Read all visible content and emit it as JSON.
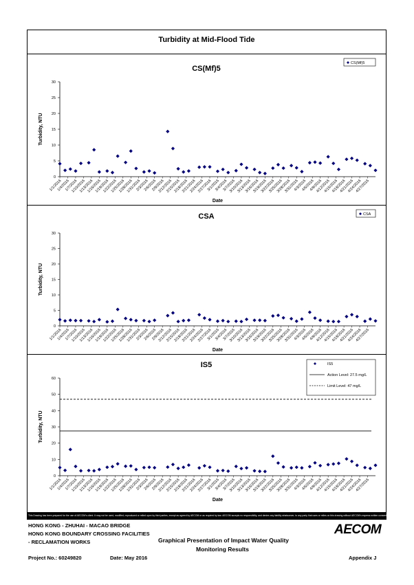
{
  "page": {
    "title": "Turbidity at Mid-Flood Tide",
    "disclaimer": "This Drawing has been prepared for the use of AECOM's client. It may not be used, modified, reproduced or relied upon by third parties, except as agreed by AECOM or as required by law. AECOM accepts no responsibility, and denies any liability whatsoever, to any party that uses or relies on this drawing without AECOM's express written consent."
  },
  "footer": {
    "line1": "HONG KONG - ZHUHAI - MACAO BRIDGE",
    "line2": "HONG KONG BOUNDARY CROSSING FACILITIES",
    "line3": "- RECLAMATION WORKS",
    "presentation_title_1": "Graphical Presentation of Impact Water Quality",
    "presentation_title_2": "Monitoring Results",
    "project_no": "Project No.: 60249820",
    "date": "Date: May 2016",
    "appendix": "Appendix J",
    "logo_text": "AECOM"
  },
  "x_tick_labels": [
    "1/1/2016",
    "1/4/2016",
    "1/7/2016",
    "1/10/2016",
    "1/13/2016",
    "1/16/2016",
    "1/19/2016",
    "1/22/2016",
    "1/25/2016",
    "1/28/2016",
    "1/31/2016",
    "2/3/2016",
    "2/6/2016",
    "2/9/2016",
    "2/12/2016",
    "2/15/2016",
    "2/18/2016",
    "2/21/2016",
    "2/24/2016",
    "2/27/2016",
    "3/1/2016",
    "3/4/2016",
    "3/7/2016",
    "3/10/2016",
    "3/13/2016",
    "3/16/2016",
    "3/19/2016",
    "3/22/2016",
    "3/25/2016",
    "3/28/2016",
    "3/31/2016",
    "4/3/2016",
    "4/6/2016",
    "4/9/2016",
    "4/12/2016",
    "4/15/2016",
    "4/18/2016",
    "4/21/2016",
    "4/24/2016",
    "4/27/2016"
  ],
  "chart_data": [
    {
      "type": "scatter",
      "title": "CS(Mf)5",
      "xlabel": "Date",
      "ylabel": "Turbidity, NTU",
      "ylim": [
        0,
        30
      ],
      "yticks": [
        0,
        5,
        10,
        15,
        20,
        25,
        30
      ],
      "legend_position": "top-right",
      "series": [
        {
          "name": "CS(Mf)5",
          "color": "#000080",
          "marker": "diamond",
          "x": [
            "1/1/2016",
            "1/3/2016",
            "1/5/2016",
            "1/7/2016",
            "1/9/2016",
            "1/12/2016",
            "1/14/2016",
            "1/16/2016",
            "1/19/2016",
            "1/21/2016",
            "1/23/2016",
            "1/26/2016",
            "1/28/2016",
            "1/30/2016",
            "2/2/2016",
            "2/4/2016",
            "2/6/2016",
            "2/11/2016",
            "2/13/2016",
            "2/15/2016",
            "2/17/2016",
            "2/19/2016",
            "2/23/2016",
            "2/25/2016",
            "2/27/2016",
            "3/1/2016",
            "3/3/2016",
            "3/5/2016",
            "3/8/2016",
            "3/10/2016",
            "3/12/2016",
            "3/15/2016",
            "3/17/2016",
            "3/19/2016",
            "3/22/2016",
            "3/24/2016",
            "3/26/2016",
            "3/29/2016",
            "3/31/2016",
            "4/2/2016",
            "4/5/2016",
            "4/7/2016",
            "4/9/2016",
            "4/12/2016",
            "4/14/2016",
            "4/16/2016",
            "4/19/2016",
            "4/21/2016",
            "4/23/2016",
            "4/26/2016",
            "4/28/2016",
            "4/30/2016"
          ],
          "y": [
            4.1,
            2.0,
            2.4,
            1.8,
            4.2,
            4.4,
            8.5,
            1.5,
            1.8,
            1.3,
            6.5,
            4.5,
            8.1,
            2.6,
            1.5,
            1.8,
            1.2,
            14.3,
            8.9,
            2.5,
            1.5,
            1.8,
            3.0,
            3.1,
            3.1,
            1.7,
            2.3,
            1.3,
            1.9,
            3.9,
            2.8,
            2.3,
            1.3,
            1.0,
            2.7,
            3.8,
            2.7,
            3.5,
            2.8,
            1.6,
            4.4,
            4.6,
            4.3,
            6.3,
            4.2,
            2.3,
            5.5,
            5.8,
            5.2,
            4.1,
            3.5,
            2.0
          ]
        }
      ]
    },
    {
      "type": "scatter",
      "title": "CSA",
      "xlabel": "Date",
      "ylabel": "Turbidity, NTU",
      "ylim": [
        0,
        30
      ],
      "yticks": [
        0,
        5,
        10,
        15,
        20,
        25,
        30
      ],
      "legend_position": "top-right",
      "series": [
        {
          "name": "CSA",
          "color": "#000080",
          "marker": "diamond",
          "x": [
            "1/1/2016",
            "1/3/2016",
            "1/5/2016",
            "1/7/2016",
            "1/9/2016",
            "1/12/2016",
            "1/14/2016",
            "1/16/2016",
            "1/19/2016",
            "1/21/2016",
            "1/23/2016",
            "1/26/2016",
            "1/28/2016",
            "1/30/2016",
            "2/2/2016",
            "2/4/2016",
            "2/6/2016",
            "2/11/2016",
            "2/13/2016",
            "2/15/2016",
            "2/17/2016",
            "2/19/2016",
            "2/23/2016",
            "2/25/2016",
            "2/27/2016",
            "3/1/2016",
            "3/3/2016",
            "3/5/2016",
            "3/8/2016",
            "3/10/2016",
            "3/12/2016",
            "3/15/2016",
            "3/17/2016",
            "3/19/2016",
            "3/22/2016",
            "3/24/2016",
            "3/26/2016",
            "3/29/2016",
            "3/31/2016",
            "4/2/2016",
            "4/5/2016",
            "4/7/2016",
            "4/9/2016",
            "4/12/2016",
            "4/14/2016",
            "4/16/2016",
            "4/19/2016",
            "4/21/2016",
            "4/23/2016",
            "4/26/2016",
            "4/28/2016",
            "4/30/2016"
          ],
          "y": [
            2.0,
            1.6,
            1.8,
            1.7,
            1.7,
            1.6,
            1.4,
            2.0,
            1.3,
            1.5,
            5.3,
            2.4,
            2.0,
            1.7,
            1.7,
            1.4,
            1.8,
            3.3,
            4.2,
            1.4,
            1.7,
            1.8,
            3.6,
            2.5,
            2.0,
            1.5,
            1.7,
            1.4,
            1.5,
            1.4,
            2.1,
            1.8,
            1.8,
            1.7,
            3.2,
            3.4,
            2.6,
            2.3,
            1.5,
            2.2,
            4.4,
            2.5,
            1.8,
            1.5,
            1.4,
            1.4,
            3.0,
            3.6,
            3.0,
            1.5,
            2.2,
            1.6
          ]
        }
      ]
    },
    {
      "type": "scatter",
      "title": "IS5",
      "xlabel": "Date",
      "ylabel": "Turbidity, NTU",
      "ylim": [
        0,
        60
      ],
      "yticks": [
        0,
        10,
        20,
        30,
        40,
        50,
        60
      ],
      "legend_position": "top-right",
      "series": [
        {
          "name": "IS5",
          "color": "#000080",
          "marker": "diamond",
          "x": [
            "1/1/2016",
            "1/3/2016",
            "1/5/2016",
            "1/7/2016",
            "1/9/2016",
            "1/12/2016",
            "1/14/2016",
            "1/16/2016",
            "1/19/2016",
            "1/21/2016",
            "1/23/2016",
            "1/26/2016",
            "1/28/2016",
            "1/30/2016",
            "2/2/2016",
            "2/4/2016",
            "2/6/2016",
            "2/11/2016",
            "2/13/2016",
            "2/15/2016",
            "2/17/2016",
            "2/19/2016",
            "2/23/2016",
            "2/25/2016",
            "2/27/2016",
            "3/1/2016",
            "3/3/2016",
            "3/5/2016",
            "3/8/2016",
            "3/10/2016",
            "3/12/2016",
            "3/15/2016",
            "3/17/2016",
            "3/19/2016",
            "3/22/2016",
            "3/24/2016",
            "3/26/2016",
            "3/29/2016",
            "3/31/2016",
            "4/2/2016",
            "4/5/2016",
            "4/7/2016",
            "4/9/2016",
            "4/12/2016",
            "4/14/2016",
            "4/16/2016",
            "4/19/2016",
            "4/21/2016",
            "4/23/2016",
            "4/26/2016",
            "4/28/2016",
            "4/30/2016"
          ],
          "y": [
            5.0,
            3.3,
            16.1,
            5.7,
            3.0,
            3.2,
            3.0,
            3.8,
            5.2,
            5.6,
            7.3,
            5.8,
            6.0,
            3.8,
            5.0,
            5.2,
            4.9,
            5.3,
            6.9,
            4.5,
            5.2,
            6.5,
            4.8,
            6.1,
            5.2,
            3.0,
            3.2,
            2.8,
            5.7,
            4.4,
            4.8,
            3.0,
            2.7,
            2.6,
            12.0,
            7.8,
            5.4,
            4.8,
            5.2,
            4.8,
            5.6,
            7.9,
            6.2,
            6.8,
            7.2,
            7.6,
            10.3,
            8.8,
            6.4,
            5.0,
            4.5,
            6.4
          ]
        },
        {
          "name": "Action Level: 27.5 mg/L",
          "style": "solid",
          "value": 27.5
        },
        {
          "name": "Limit Level: 47 mg/L",
          "style": "dashed",
          "value": 47
        }
      ]
    }
  ]
}
